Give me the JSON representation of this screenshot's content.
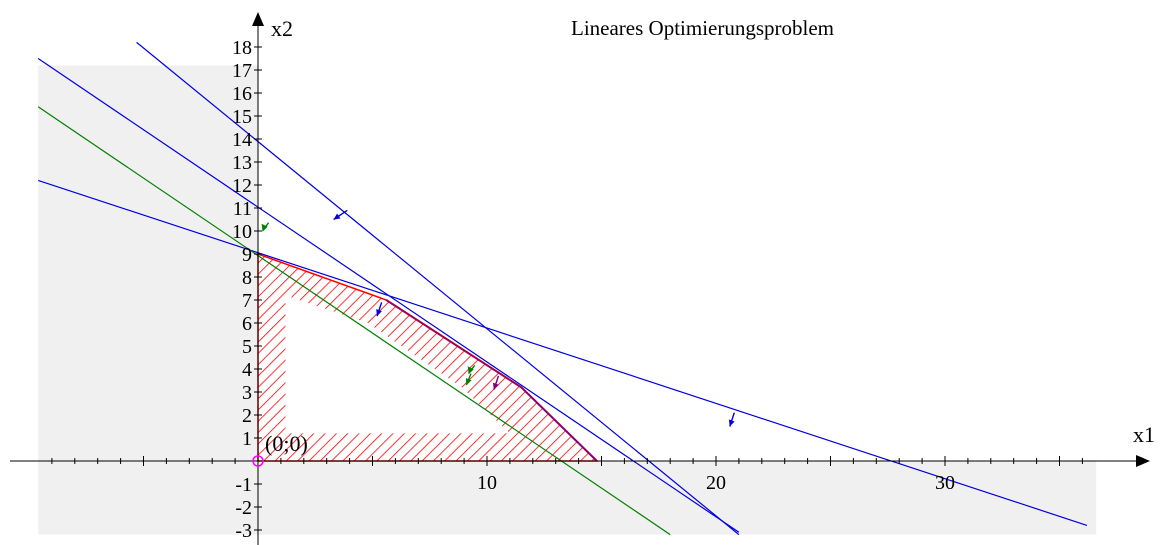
{
  "chart_data": {
    "type": "line",
    "title": "Lineares Optimierungsproblem",
    "xlabel": "x1",
    "ylabel": "x2",
    "xlim": [
      -9.6,
      36.6
    ],
    "ylim": [
      -3.2,
      18.2
    ],
    "x_ticks": [
      10,
      20,
      30
    ],
    "x_minor_step": 1,
    "y_ticks": [
      -3,
      -2,
      -1,
      1,
      2,
      3,
      4,
      5,
      6,
      7,
      8,
      9,
      10,
      11,
      12,
      13,
      14,
      15,
      16,
      17,
      18
    ],
    "origin_label": "(0;0)",
    "background_shading": {
      "x": [
        -9.6,
        36.6
      ],
      "y": [
        -3.2,
        17.2
      ],
      "color": "#f0f0f0"
    },
    "constraint_lines": [
      {
        "points": [
          [
            -5.3,
            18.2
          ],
          [
            21,
            -3.2
          ]
        ],
        "color": "#0000e0",
        "arrow_at": [
          3.9,
          10.9
        ],
        "arrow_dir": [
          -0.6,
          -0.4
        ]
      },
      {
        "points": [
          [
            -9.6,
            17.5
          ],
          [
            21,
            -3.1
          ]
        ],
        "color": "#0000e0",
        "arrow_at": [
          5.4,
          6.9
        ],
        "arrow_dir": [
          -0.2,
          -0.6
        ]
      },
      {
        "points": [
          [
            -9.6,
            12.2
          ],
          [
            36.2,
            -2.8
          ]
        ],
        "color": "#0000e0",
        "arrow_at": [
          20.8,
          2.1
        ],
        "arrow_dir": [
          -0.2,
          -0.6
        ]
      },
      {
        "points": [
          [
            -9.6,
            15.4
          ],
          [
            18,
            -3.2
          ]
        ],
        "color": "#008000",
        "arrow_at": [
          9.3,
          3.8
        ],
        "arrow_dir": [
          -0.2,
          -0.5
        ]
      },
      {
        "points": [
          [
            11.5,
            3.2
          ],
          [
            14.8,
            0
          ]
        ],
        "color": "#800080",
        "arrow_at": [
          10.5,
          3.7
        ],
        "arrow_dir": [
          -0.2,
          -0.6
        ]
      }
    ],
    "feasible_region": {
      "vertices": [
        [
          0,
          9
        ],
        [
          5.6,
          7
        ],
        [
          11.5,
          3.2
        ],
        [
          14.8,
          0
        ],
        [
          0,
          0
        ]
      ],
      "hatch_color": "#ff0000",
      "note_x_band": [
        1.2,
        1.2
      ],
      "note_y_band": [
        1.2,
        7.2
      ]
    },
    "edge_highlight": {
      "points": [
        [
          5.6,
          7
        ],
        [
          11.5,
          3.2
        ],
        [
          14.8,
          0
        ]
      ],
      "color": "#a00050"
    },
    "green_arrows": [
      [
        0.2,
        10.1
      ],
      [
        9.2,
        3.9
      ]
    ],
    "origin_marker_color": "#ff00ff"
  }
}
